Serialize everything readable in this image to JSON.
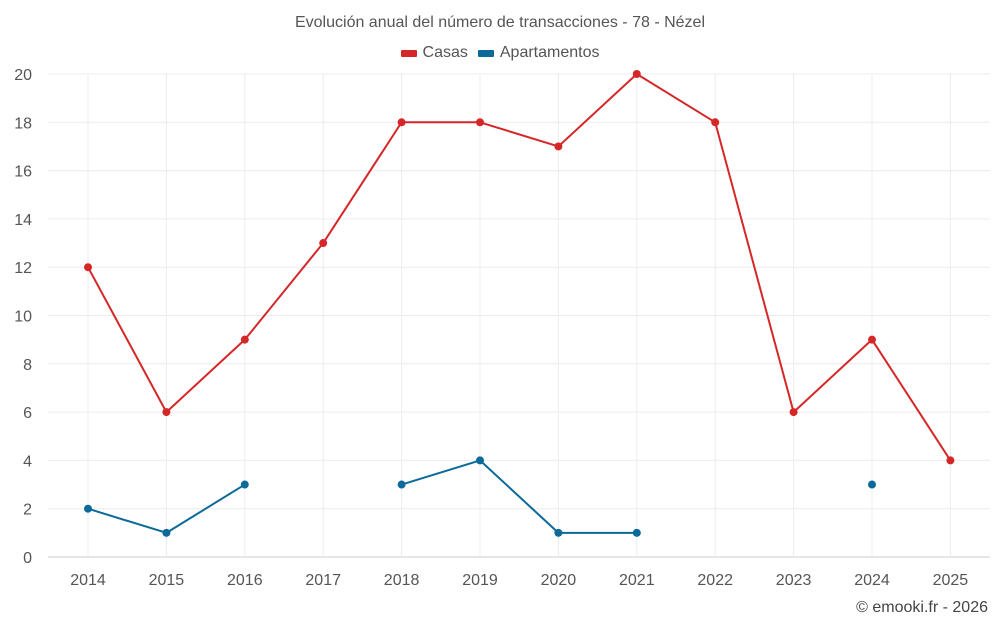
{
  "chart_data": {
    "type": "line",
    "title": "Evolución anual del número de transacciones - 78 - Nézel",
    "xlabel": "",
    "ylabel": "",
    "ylim": [
      0,
      20
    ],
    "yticks": [
      0,
      2,
      4,
      6,
      8,
      10,
      12,
      14,
      16,
      18,
      20
    ],
    "categories": [
      "2014",
      "2015",
      "2016",
      "2017",
      "2018",
      "2019",
      "2020",
      "2021",
      "2022",
      "2023",
      "2024",
      "2025"
    ],
    "series": [
      {
        "name": "Casas",
        "color": "#d62728",
        "values": [
          12,
          6,
          9,
          13,
          18,
          18,
          17,
          20,
          18,
          6,
          9,
          4
        ]
      },
      {
        "name": "Apartamentos",
        "color": "#0b6a9a",
        "values": [
          2,
          1,
          3,
          null,
          3,
          4,
          1,
          1,
          null,
          null,
          3,
          null
        ]
      }
    ],
    "legend": "top-center",
    "grid": true
  },
  "credit": "© emooki.fr - 2026"
}
